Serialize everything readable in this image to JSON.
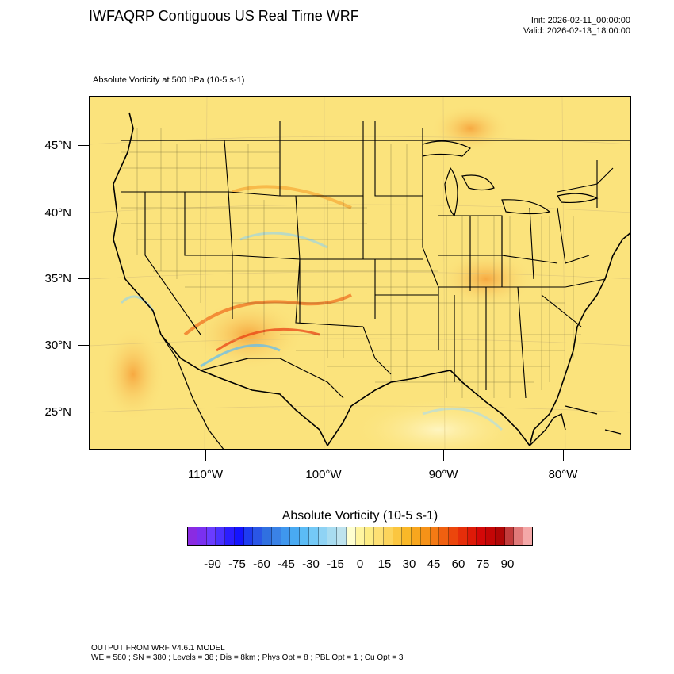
{
  "header": {
    "title": "IWFAQRP Contiguous US Real Time WRF",
    "init": "Init: 2026-02-11_00:00:00",
    "valid": "Valid: 2026-02-13_18:00:00"
  },
  "field_label": "Absolute Vorticity at 500 hPa   (10-5 s-1)",
  "map": {
    "lat_labels": [
      "45°N",
      "40°N",
      "35°N",
      "30°N",
      "25°N"
    ],
    "lon_labels": [
      "110°W",
      "100°W",
      "90°W",
      "80°W"
    ],
    "background_color": "#fbe37c",
    "boundary_color": "#000000"
  },
  "colorbar": {
    "title": "Absolute Vorticity  (10-5 s-1)",
    "tick_labels": [
      "-90",
      "-75",
      "-60",
      "-45",
      "-30",
      "-15",
      "0",
      "15",
      "30",
      "45",
      "60",
      "75",
      "90"
    ],
    "colors": [
      "#8a2be2",
      "#7a30f0",
      "#6a3cff",
      "#4b32ff",
      "#2b1eff",
      "#1414ff",
      "#1e3cf0",
      "#2a56e6",
      "#3070e0",
      "#3a82e6",
      "#3f97ee",
      "#49aaf2",
      "#5bbcf6",
      "#74c9f6",
      "#8fd3f4",
      "#a8dcf0",
      "#bee3ee",
      "#ffffd0",
      "#fff5a0",
      "#fdec84",
      "#fde074",
      "#fcd45c",
      "#fbc640",
      "#fab828",
      "#f8a61e",
      "#f69218",
      "#f47a14",
      "#f06010",
      "#ec460c",
      "#e62e0a",
      "#de1a08",
      "#d40808",
      "#c40606",
      "#b00606",
      "#c23c3c",
      "#e07a7a",
      "#f4a8a8"
    ]
  },
  "footer": {
    "line1": "OUTPUT FROM WRF V4.6.1 MODEL",
    "line2": "WE = 580 ; SN = 380 ; Levels = 38 ; Dis = 8km ; Phys Opt = 8 ; PBL Opt = 1 ; Cu Opt = 3"
  }
}
